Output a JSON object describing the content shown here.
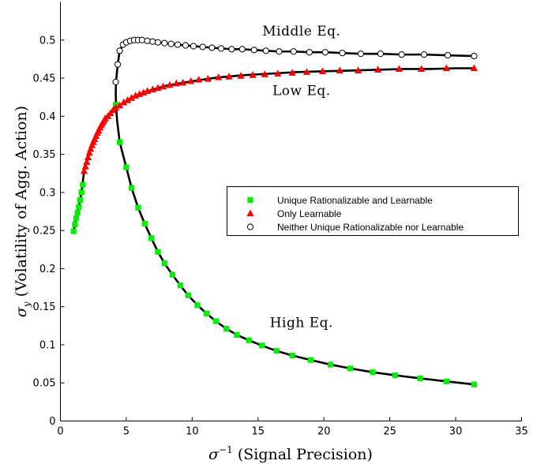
{
  "chart_data": {
    "type": "line",
    "title": "",
    "xlabel": "(Signal Precision)",
    "xlabel_symbol": "σ",
    "xlabel_sup": "−1",
    "ylabel": "(Volatility of Agg. Action)",
    "ylabel_symbol": "σ",
    "ylabel_sub": "y",
    "xlim": [
      0,
      35
    ],
    "ylim": [
      0,
      0.55
    ],
    "xticks": [
      0,
      5,
      10,
      15,
      20,
      25,
      30,
      35
    ],
    "xtick_labels": [
      "0",
      "5",
      "10",
      "15",
      "20",
      "25",
      "30",
      "35"
    ],
    "yticks": [
      0,
      0.05,
      0.1,
      0.15,
      0.2,
      0.25,
      0.3,
      0.35,
      0.4,
      0.45,
      0.5
    ],
    "ytick_labels": [
      "0",
      "0.05",
      "0.1",
      "0.15",
      "0.2",
      "0.25",
      "0.3",
      "0.35",
      "0.4",
      "0.45",
      "0.5"
    ],
    "grid": false,
    "legend_position": "center-right",
    "annotations": [
      {
        "text": "Middle Eq.",
        "x": 18.3,
        "y": 0.506
      },
      {
        "text": "Low Eq.",
        "x": 18.3,
        "y": 0.428
      },
      {
        "text": "High Eq.",
        "x": 18.3,
        "y": 0.123
      }
    ],
    "series": [
      {
        "name": "Unique Rationalizable and Learnable",
        "marker": "square",
        "color": "#00ee00",
        "x": [
          1.0,
          1.1,
          1.2,
          1.3,
          1.4,
          1.5,
          1.6,
          1.7,
          4.2,
          4.5,
          5.0,
          5.4,
          5.9,
          6.4,
          6.9,
          7.4,
          7.9,
          8.5,
          9.1,
          9.7,
          10.4,
          11.1,
          11.8,
          12.6,
          13.4,
          14.3,
          15.3,
          16.4,
          17.6,
          19.0,
          20.5,
          22.0,
          23.7,
          25.4,
          27.3,
          29.3,
          31.4
        ],
        "y": [
          0.249,
          0.258,
          0.266,
          0.273,
          0.281,
          0.29,
          0.3,
          0.31,
          0.415,
          0.366,
          0.333,
          0.306,
          0.28,
          0.259,
          0.24,
          0.222,
          0.207,
          0.192,
          0.178,
          0.165,
          0.152,
          0.141,
          0.131,
          0.121,
          0.113,
          0.106,
          0.099,
          0.092,
          0.086,
          0.08,
          0.074,
          0.069,
          0.064,
          0.06,
          0.056,
          0.052,
          0.048
        ]
      },
      {
        "name": "Only Learnable",
        "marker": "triangle",
        "color": "#ff0000",
        "x": [
          1.8,
          1.9,
          2.0,
          2.1,
          2.2,
          2.3,
          2.4,
          2.5,
          2.6,
          2.7,
          2.8,
          2.9,
          3.0,
          3.1,
          3.2,
          3.3,
          3.4,
          3.6,
          3.8,
          4.0,
          4.2,
          4.5,
          4.8,
          5.1,
          5.4,
          5.7,
          6.0,
          6.3,
          6.6,
          7.0,
          7.4,
          7.8,
          8.3,
          8.8,
          9.3,
          9.9,
          10.5,
          11.2,
          12.0,
          12.8,
          13.7,
          14.6,
          15.5,
          16.5,
          17.6,
          18.7,
          19.9,
          21.2,
          22.6,
          24.1,
          25.7,
          27.4,
          29.3,
          31.4
        ],
        "y": [
          0.328,
          0.334,
          0.34,
          0.346,
          0.352,
          0.357,
          0.362,
          0.366,
          0.37,
          0.374,
          0.378,
          0.381,
          0.385,
          0.388,
          0.391,
          0.394,
          0.397,
          0.4,
          0.404,
          0.408,
          0.411,
          0.414,
          0.418,
          0.421,
          0.424,
          0.427,
          0.429,
          0.431,
          0.433,
          0.435,
          0.437,
          0.439,
          0.441,
          0.443,
          0.444,
          0.446,
          0.448,
          0.449,
          0.451,
          0.452,
          0.453,
          0.454,
          0.455,
          0.456,
          0.457,
          0.458,
          0.459,
          0.46,
          0.46,
          0.461,
          0.462,
          0.462,
          0.463,
          0.463
        ]
      },
      {
        "name": "Neither Unique Rationalizable nor Learnable",
        "marker": "circle",
        "color": "#ffffff",
        "x": [
          4.2,
          4.35,
          4.5,
          4.75,
          5.0,
          5.3,
          5.6,
          5.9,
          6.2,
          6.6,
          7.0,
          7.4,
          7.9,
          8.4,
          8.9,
          9.5,
          10.1,
          10.8,
          11.5,
          12.2,
          13.0,
          13.8,
          14.7,
          15.6,
          16.6,
          17.7,
          18.9,
          20.1,
          21.4,
          22.8,
          24.3,
          25.9,
          27.6,
          29.4,
          31.4
        ],
        "y": [
          0.445,
          0.468,
          0.486,
          0.494,
          0.497,
          0.499,
          0.5,
          0.5,
          0.5,
          0.499,
          0.498,
          0.497,
          0.496,
          0.495,
          0.494,
          0.493,
          0.492,
          0.491,
          0.49,
          0.489,
          0.488,
          0.488,
          0.487,
          0.486,
          0.485,
          0.485,
          0.484,
          0.484,
          0.483,
          0.482,
          0.482,
          0.481,
          0.481,
          0.48,
          0.479
        ]
      }
    ],
    "curves": [
      {
        "name": "low-eq-curve",
        "x": [
          1.0,
          1.2,
          1.4,
          1.6,
          1.8,
          2.0,
          2.3,
          2.6,
          3.0,
          3.4,
          3.8,
          4.2,
          4.8,
          5.4,
          6.0,
          7.0,
          8.0,
          9.0,
          10.0,
          12.0,
          14.0,
          16.0,
          18.0,
          20.0,
          22.0,
          24.0,
          26.0,
          28.0,
          30.0,
          31.4
        ],
        "y": [
          0.249,
          0.266,
          0.281,
          0.3,
          0.328,
          0.34,
          0.357,
          0.37,
          0.385,
          0.397,
          0.404,
          0.411,
          0.418,
          0.424,
          0.429,
          0.435,
          0.44,
          0.443,
          0.446,
          0.451,
          0.454,
          0.456,
          0.458,
          0.459,
          0.46,
          0.461,
          0.462,
          0.462,
          0.463,
          0.463
        ]
      },
      {
        "name": "middle-high-eq-curve",
        "x": [
          31.4,
          29.3,
          27.6,
          25.9,
          24.3,
          22.8,
          21.4,
          20.1,
          18.9,
          17.7,
          16.6,
          15.6,
          14.7,
          13.8,
          13.0,
          12.2,
          11.5,
          10.8,
          10.1,
          9.5,
          8.9,
          8.4,
          7.9,
          7.4,
          7.0,
          6.6,
          6.2,
          5.9,
          5.6,
          5.3,
          5.0,
          4.75,
          4.5,
          4.35,
          4.22,
          4.2,
          4.22,
          4.3,
          4.5,
          5.0,
          5.4,
          5.9,
          6.4,
          6.9,
          7.4,
          7.9,
          8.5,
          9.1,
          9.7,
          10.4,
          11.1,
          11.8,
          12.6,
          13.4,
          14.3,
          15.3,
          16.4,
          17.6,
          19.0,
          20.5,
          22.0,
          23.7,
          25.4,
          27.3,
          29.3,
          31.4
        ],
        "y": [
          0.479,
          0.48,
          0.481,
          0.481,
          0.482,
          0.482,
          0.483,
          0.484,
          0.484,
          0.485,
          0.485,
          0.486,
          0.487,
          0.488,
          0.488,
          0.489,
          0.49,
          0.491,
          0.492,
          0.493,
          0.494,
          0.495,
          0.496,
          0.497,
          0.498,
          0.499,
          0.5,
          0.5,
          0.5,
          0.499,
          0.497,
          0.494,
          0.486,
          0.468,
          0.445,
          0.43,
          0.415,
          0.395,
          0.366,
          0.333,
          0.306,
          0.28,
          0.259,
          0.24,
          0.222,
          0.207,
          0.192,
          0.178,
          0.165,
          0.152,
          0.141,
          0.131,
          0.121,
          0.113,
          0.106,
          0.099,
          0.092,
          0.086,
          0.08,
          0.074,
          0.069,
          0.064,
          0.06,
          0.056,
          0.052,
          0.048
        ]
      }
    ]
  }
}
